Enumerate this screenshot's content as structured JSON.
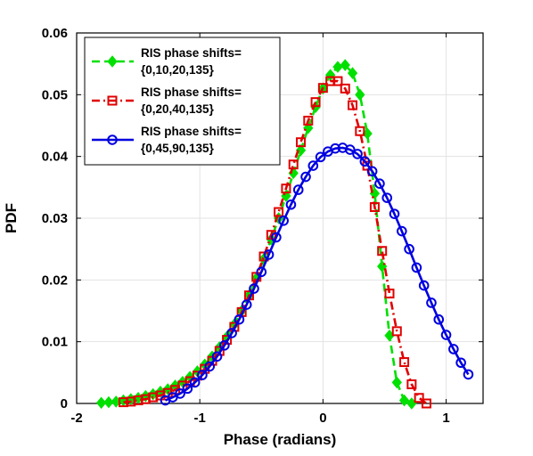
{
  "chart_data": {
    "type": "line",
    "xlabel": "Phase (radians)",
    "ylabel": "PDF",
    "xlim": [
      -2,
      1.3
    ],
    "ylim": [
      0,
      0.06
    ],
    "x_ticks": [
      -2,
      -1,
      0,
      1
    ],
    "y_ticks": [
      0,
      0.01,
      0.02,
      0.03,
      0.04,
      0.05,
      0.06
    ],
    "x_tick_labels": [
      "-2",
      "-1",
      "0",
      "1"
    ],
    "y_tick_labels": [
      "0",
      "0.01",
      "0.02",
      "0.03",
      "0.04",
      "0.05",
      "0.06"
    ],
    "grid": true,
    "legend_position": "top-left",
    "series": [
      {
        "name": "RIS phase shifts=\n{0,10,20,135}",
        "legend_lines": [
          "RIS phase shifts=",
          "{0,10,20,135}"
        ],
        "color": "#00e000",
        "line_style": "dashed",
        "marker": "diamond",
        "x": [
          -1.8,
          -1.74,
          -1.68,
          -1.62,
          -1.56,
          -1.5,
          -1.44,
          -1.38,
          -1.32,
          -1.26,
          -1.2,
          -1.14,
          -1.08,
          -1.02,
          -0.96,
          -0.9,
          -0.84,
          -0.78,
          -0.72,
          -0.66,
          -0.6,
          -0.54,
          -0.48,
          -0.42,
          -0.36,
          -0.3,
          -0.24,
          -0.18,
          -0.12,
          -0.06,
          0.0,
          0.06,
          0.12,
          0.18,
          0.24,
          0.3,
          0.36,
          0.42,
          0.48,
          0.54,
          0.6,
          0.66,
          0.72
        ],
        "y": [
          0.0001,
          0.0002,
          0.0003,
          0.0005,
          0.0007,
          0.0009,
          0.0012,
          0.0015,
          0.0019,
          0.0023,
          0.0029,
          0.0035,
          0.0043,
          0.0052,
          0.0063,
          0.0076,
          0.0091,
          0.0108,
          0.0128,
          0.015,
          0.0175,
          0.0203,
          0.0234,
          0.0266,
          0.03,
          0.0336,
          0.0373,
          0.041,
          0.0446,
          0.048,
          0.051,
          0.0532,
          0.0545,
          0.0548,
          0.0535,
          0.05,
          0.0437,
          0.034,
          0.0222,
          0.011,
          0.0034,
          0.0005,
          0.0
        ]
      },
      {
        "name": "RIS phase shifts=\n{0,20,40,135}",
        "legend_lines": [
          "RIS phase shifts=",
          "{0,20,40,135}"
        ],
        "color": "#e00000",
        "line_style": "dashdot",
        "marker": "square",
        "x": [
          -1.62,
          -1.56,
          -1.5,
          -1.44,
          -1.38,
          -1.32,
          -1.26,
          -1.2,
          -1.14,
          -1.08,
          -1.02,
          -0.96,
          -0.9,
          -0.84,
          -0.78,
          -0.72,
          -0.66,
          -0.6,
          -0.54,
          -0.48,
          -0.42,
          -0.36,
          -0.3,
          -0.24,
          -0.18,
          -0.12,
          -0.06,
          0.0,
          0.06,
          0.12,
          0.18,
          0.24,
          0.3,
          0.36,
          0.42,
          0.48,
          0.54,
          0.6,
          0.66,
          0.72,
          0.78,
          0.84
        ],
        "y": [
          0.0002,
          0.0003,
          0.0005,
          0.0007,
          0.001,
          0.0013,
          0.0017,
          0.0022,
          0.0029,
          0.0036,
          0.0045,
          0.0056,
          0.0069,
          0.0085,
          0.0103,
          0.0124,
          0.0148,
          0.0175,
          0.0205,
          0.0238,
          0.0273,
          0.031,
          0.0348,
          0.0387,
          0.0423,
          0.0458,
          0.0488,
          0.0511,
          0.0522,
          0.0522,
          0.051,
          0.0483,
          0.0441,
          0.0385,
          0.0318,
          0.0247,
          0.0178,
          0.0117,
          0.0067,
          0.0031,
          0.0009,
          0.0
        ]
      },
      {
        "name": "RIS phase shifts=\n{0,45,90,135}",
        "legend_lines": [
          "RIS phase shifts=",
          "{0,45,90,135}"
        ],
        "color": "#0000e0",
        "line_style": "solid",
        "marker": "circle",
        "x": [
          -1.28,
          -1.22,
          -1.16,
          -1.1,
          -1.04,
          -0.98,
          -0.92,
          -0.86,
          -0.8,
          -0.74,
          -0.68,
          -0.62,
          -0.56,
          -0.5,
          -0.44,
          -0.38,
          -0.32,
          -0.26,
          -0.2,
          -0.14,
          -0.08,
          -0.02,
          0.04,
          0.1,
          0.16,
          0.22,
          0.28,
          0.34,
          0.4,
          0.46,
          0.52,
          0.58,
          0.64,
          0.7,
          0.76,
          0.82,
          0.88,
          0.94,
          1.0,
          1.06,
          1.12,
          1.18
        ],
        "y": [
          0.0005,
          0.001,
          0.0016,
          0.0024,
          0.0034,
          0.0046,
          0.006,
          0.0076,
          0.0094,
          0.0114,
          0.0136,
          0.016,
          0.0186,
          0.0213,
          0.0241,
          0.0269,
          0.0296,
          0.0322,
          0.0346,
          0.0367,
          0.0385,
          0.0399,
          0.0408,
          0.0413,
          0.0414,
          0.0411,
          0.0404,
          0.0392,
          0.0376,
          0.0356,
          0.0333,
          0.0307,
          0.0279,
          0.025,
          0.022,
          0.0191,
          0.0163,
          0.0136,
          0.0111,
          0.0088,
          0.0066,
          0.0047
        ]
      }
    ]
  }
}
